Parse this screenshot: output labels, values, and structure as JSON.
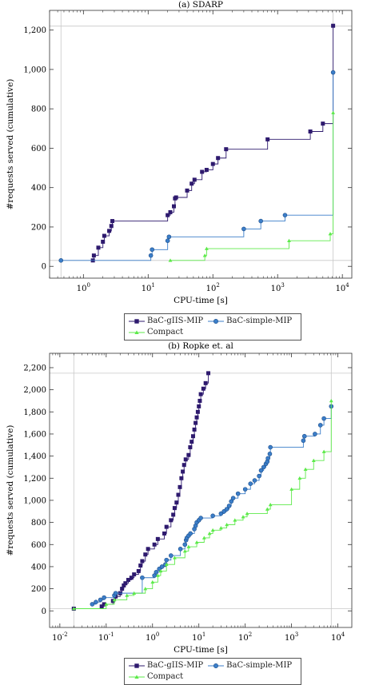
{
  "chart_data": [
    {
      "type": "line",
      "step": true,
      "title": "(a) SDARP",
      "xlabel": "CPU-time [s]",
      "ylabel": "#requests served (cumulative)",
      "xscale": "log",
      "xlim": [
        0.3,
        14000
      ],
      "ylim": [
        -60,
        1300
      ],
      "xticks": [
        1,
        10,
        100,
        1000,
        10000
      ],
      "xtick_labels": [
        "10^0",
        "10^1",
        "10^2",
        "10^3",
        "10^4"
      ],
      "yticks": [
        0,
        200,
        400,
        600,
        800,
        1000,
        1200
      ],
      "ytick_labels": [
        "0",
        "200",
        "400",
        "600",
        "800",
        "1,000",
        "1,200"
      ],
      "ref_lines": {
        "vertical_x": [
          0.45,
          7200
        ],
        "horizontal_y": [
          30,
          1220
        ]
      },
      "grid": false,
      "legend_position": "bottom-outside",
      "series": [
        {
          "name": "BaC-gIIS-MIP",
          "color": "#2e1a6e",
          "marker": "square",
          "x": [
            1.4,
            1.45,
            1.7,
            2.0,
            2.1,
            2.5,
            2.7,
            2.8,
            20,
            22,
            25,
            26,
            27,
            40,
            47,
            52,
            68,
            80,
            100,
            120,
            160,
            700,
            3200,
            5000,
            7200
          ],
          "y": [
            30,
            55,
            95,
            125,
            155,
            180,
            205,
            230,
            260,
            275,
            305,
            345,
            350,
            385,
            420,
            440,
            480,
            490,
            520,
            550,
            595,
            645,
            685,
            725,
            1222
          ]
        },
        {
          "name": "BaC-simple-MIP",
          "color": "#3b7ec9",
          "marker": "circle",
          "x": [
            0.45,
            11,
            11.5,
            20,
            21,
            300,
            550,
            1300,
            7200
          ],
          "y": [
            30,
            55,
            85,
            130,
            150,
            190,
            230,
            260,
            985
          ]
        },
        {
          "name": "Compact",
          "color": "#5dea4a",
          "marker": "triangle",
          "x": [
            22,
            75,
            80,
            1500,
            6500,
            7200
          ],
          "y": [
            30,
            55,
            90,
            130,
            165,
            780
          ]
        }
      ]
    },
    {
      "type": "line",
      "step": true,
      "title": "(b) Ropke et. al",
      "xlabel": "CPU-time [s]",
      "ylabel": "#requests served (cumulative)",
      "xscale": "log",
      "xlim": [
        0.006,
        20000
      ],
      "ylim": [
        -150,
        2330
      ],
      "xticks": [
        0.01,
        0.1,
        1,
        10,
        100,
        1000,
        10000
      ],
      "xtick_labels": [
        "10^-2",
        "10^-1",
        "10^0",
        "10^1",
        "10^2",
        "10^3",
        "10^4"
      ],
      "yticks": [
        0,
        200,
        400,
        600,
        800,
        1000,
        1200,
        1400,
        1600,
        1800,
        2000,
        2200
      ],
      "ytick_labels": [
        "0",
        "200",
        "400",
        "600",
        "800",
        "1,000",
        "1,200",
        "1,400",
        "1,600",
        "1,800",
        "2,000",
        "2,200"
      ],
      "ref_lines": {
        "vertical_x": [
          0.02,
          7200
        ],
        "horizontal_y": [
          20,
          2150
        ]
      },
      "grid": false,
      "legend_position": "bottom-outside",
      "series": [
        {
          "name": "BaC-gIIS-MIP",
          "color": "#2e1a6e",
          "marker": "square",
          "x": [
            0.02,
            0.08,
            0.09,
            0.14,
            0.16,
            0.2,
            0.22,
            0.24,
            0.26,
            0.3,
            0.35,
            0.4,
            0.5,
            0.55,
            0.6,
            0.7,
            0.8,
            1.1,
            1.3,
            1.8,
            2.0,
            2.5,
            2.8,
            3.0,
            3.3,
            3.6,
            3.9,
            4.2,
            4.5,
            4.8,
            5.2,
            6.0,
            6.5,
            7.0,
            7.5,
            8.0,
            8.5,
            9.0,
            9.5,
            10.0,
            10.5,
            11.0,
            12.5,
            14.0,
            16.0
          ],
          "y": [
            20,
            40,
            60,
            90,
            130,
            160,
            200,
            230,
            250,
            280,
            300,
            330,
            360,
            410,
            450,
            510,
            560,
            600,
            650,
            700,
            760,
            820,
            870,
            930,
            980,
            1050,
            1120,
            1200,
            1260,
            1320,
            1370,
            1410,
            1480,
            1530,
            1580,
            1640,
            1700,
            1750,
            1800,
            1850,
            1900,
            1960,
            2010,
            2060,
            2150
          ]
        },
        {
          "name": "BaC-simple-MIP",
          "color": "#3b7ec9",
          "marker": "circle",
          "x": [
            0.05,
            0.06,
            0.075,
            0.09,
            0.15,
            0.16,
            0.6,
            1.1,
            1.2,
            1.4,
            1.6,
            1.9,
            2.0,
            2.5,
            4.0,
            5.0,
            5.3,
            5.5,
            6.0,
            6.6,
            8.0,
            8.5,
            9.0,
            10.0,
            11.0,
            20,
            30,
            35,
            40,
            45,
            50,
            55,
            70,
            100,
            130,
            160,
            200,
            220,
            250,
            280,
            300,
            310,
            340,
            350,
            1800,
            1900,
            3200,
            4200,
            5000,
            7200
          ],
          "y": [
            60,
            80,
            100,
            120,
            140,
            160,
            300,
            320,
            350,
            380,
            400,
            420,
            460,
            500,
            560,
            600,
            640,
            660,
            680,
            700,
            740,
            770,
            800,
            820,
            840,
            860,
            880,
            900,
            920,
            950,
            990,
            1020,
            1060,
            1100,
            1150,
            1180,
            1220,
            1270,
            1300,
            1330,
            1350,
            1380,
            1420,
            1480,
            1540,
            1580,
            1600,
            1680,
            1740,
            1850
          ]
        },
        {
          "name": "Compact",
          "color": "#5dea4a",
          "marker": "triangle",
          "x": [
            0.02,
            0.1,
            0.15,
            0.28,
            0.4,
            0.7,
            1.0,
            1.3,
            1.5,
            2.0,
            3.0,
            5.0,
            6.0,
            9.0,
            13,
            17,
            20,
            30,
            40,
            60,
            90,
            110,
            300,
            350,
            1000,
            1500,
            2000,
            3000,
            5000,
            7200
          ],
          "y": [
            20,
            60,
            100,
            140,
            160,
            200,
            260,
            320,
            360,
            420,
            480,
            540,
            580,
            620,
            660,
            700,
            730,
            750,
            780,
            820,
            850,
            880,
            920,
            960,
            1100,
            1200,
            1280,
            1360,
            1440,
            1900
          ]
        }
      ]
    }
  ]
}
